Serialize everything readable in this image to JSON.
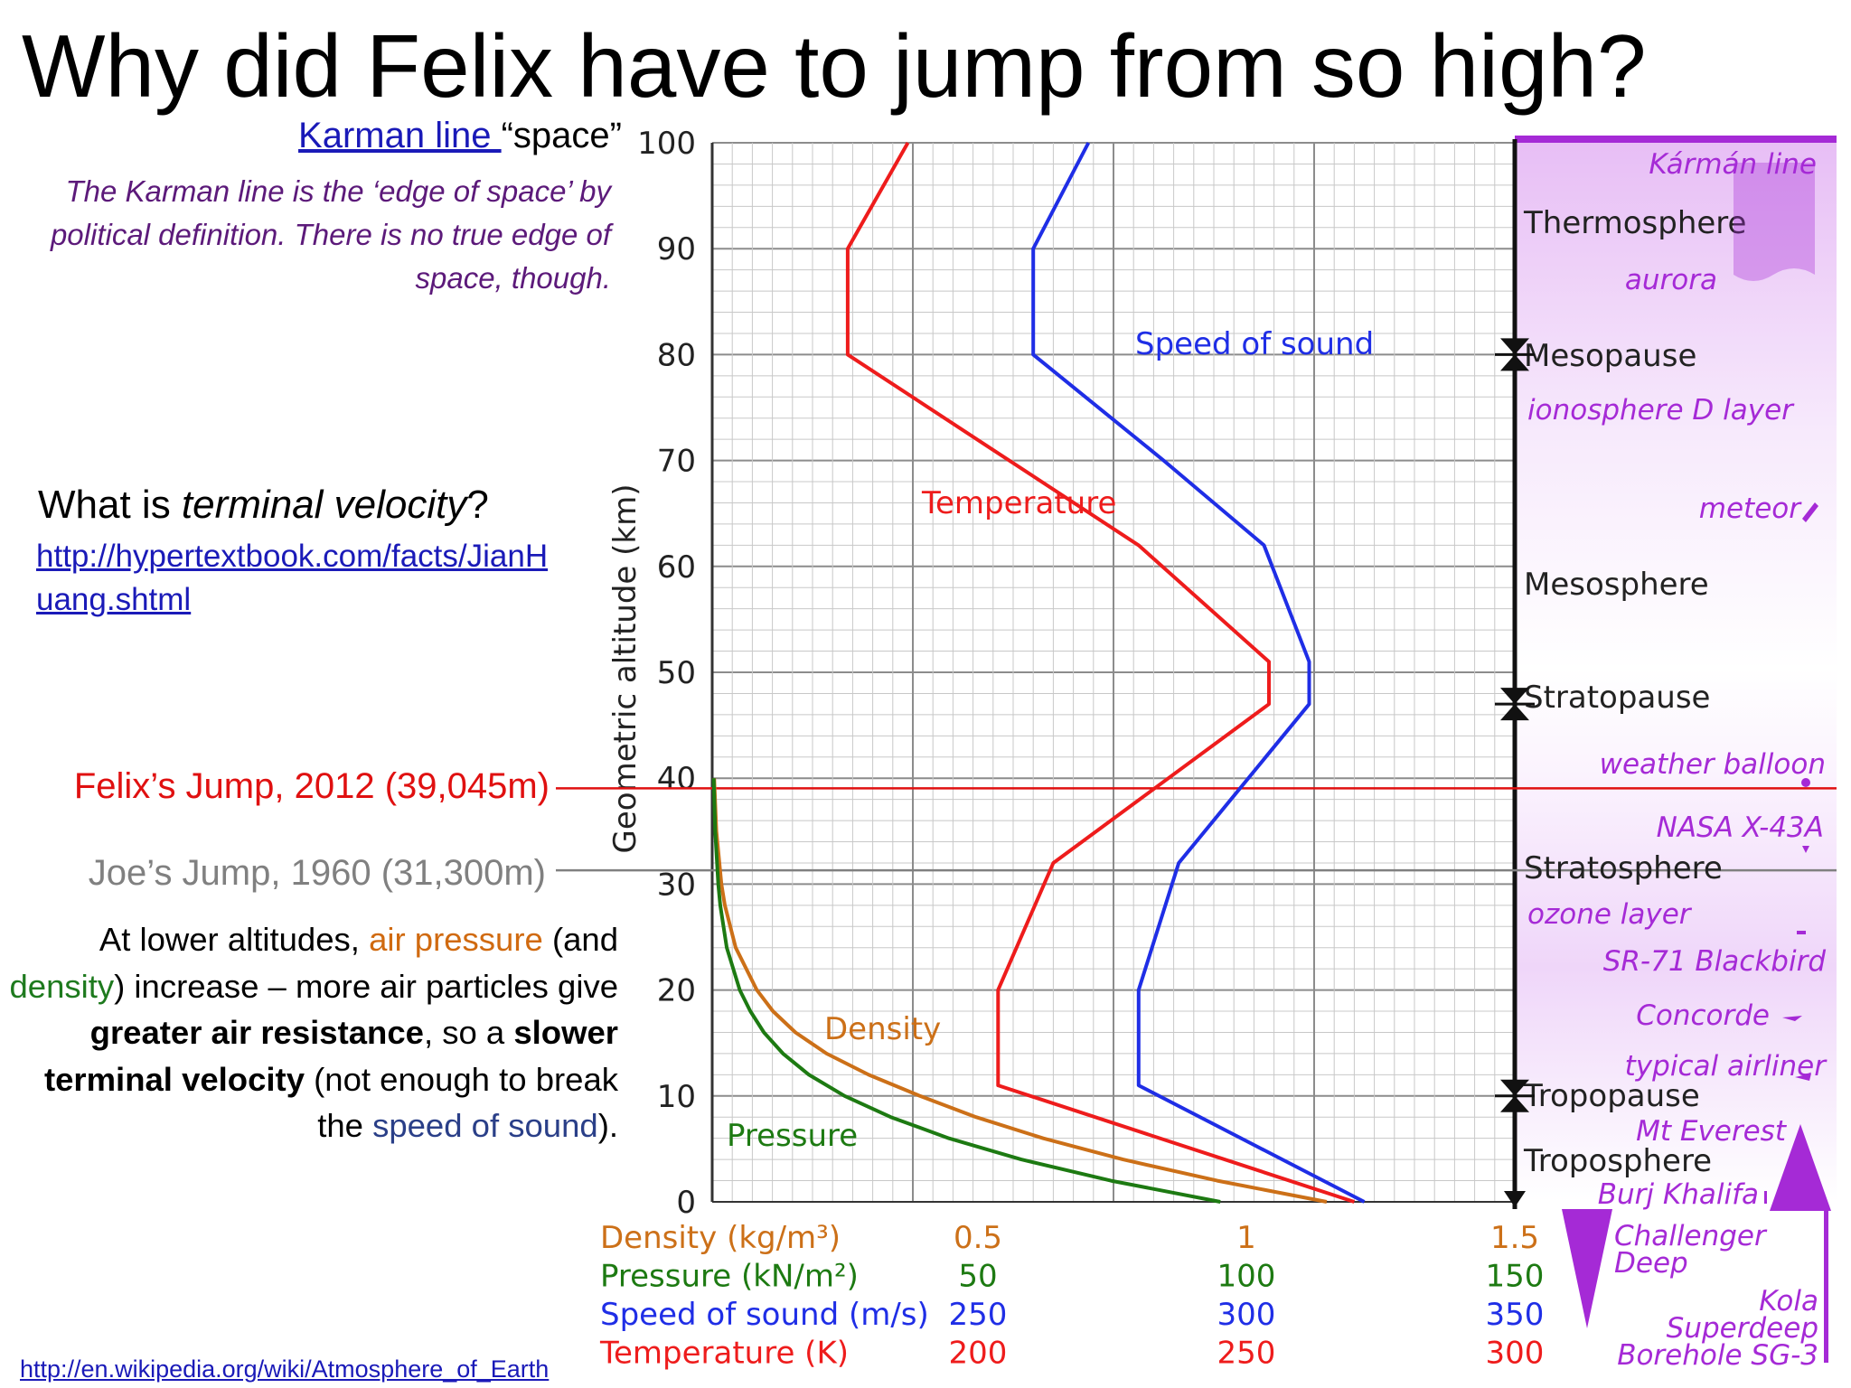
{
  "slide": {
    "title": "Why did Felix have to jump from so high?",
    "karman_link_text": "Karman line ",
    "karman_space": "“space”",
    "karman_note": "The Karman line is the ‘edge of space’ by political definition. There is no true edge of space, though.",
    "tv_question_prefix": "What is ",
    "tv_question_em": "terminal velocity",
    "tv_question_suffix": "?",
    "tv_link": "http://hypertextbook.com/facts/JianHuang.shtml",
    "felix_label": "Felix’s Jump, 2012 (39,045m)",
    "joe_label": "Joe’s Jump, 1960 (31,300m)",
    "para": {
      "p1": "At lower altitudes, ",
      "air_pressure": "air pressure",
      "p2": " (and ",
      "density": "density",
      "p3": ") increase – more air particles give ",
      "greater": "greater air resistance",
      "p4": ", so a ",
      "slower": "slower terminal velocity",
      "p5": " (not enough to break the ",
      "sos": "speed of sound",
      "p6": ")."
    },
    "source_link": "http://en.wikipedia.org/wiki/Atmosphere_of_Earth"
  },
  "colors": {
    "temperature": "#ee1c1c",
    "speed_of_sound": "#1f2ee6",
    "density": "#cc7018",
    "pressure": "#1d7a12",
    "felix_line": "#e01010",
    "joe_line": "#808080",
    "atmosphere_labels": "#a52ad6"
  },
  "chart_data": {
    "type": "line",
    "ylabel": "Geometric altitude (km)",
    "ylim": [
      0,
      100
    ],
    "yticks": [
      "0",
      "10",
      "20",
      "30",
      "40",
      "50",
      "60",
      "70",
      "80",
      "90",
      "100"
    ],
    "axes": [
      {
        "name": "Density (kg/m³)",
        "ticks": [
          "0.5",
          "1",
          "1.5"
        ]
      },
      {
        "name": "Pressure (kN/m²)",
        "ticks": [
          "50",
          "100",
          "150"
        ]
      },
      {
        "name": "Speed of sound (m/s)",
        "ticks": [
          "250",
          "300",
          "350"
        ]
      },
      {
        "name": "Temperature (K)",
        "ticks": [
          "200",
          "250",
          "300"
        ]
      }
    ],
    "series": [
      {
        "name": "Temperature",
        "unit": "K",
        "points": [
          [
            288,
            0
          ],
          [
            217,
            11
          ],
          [
            217,
            20
          ],
          [
            228,
            32
          ],
          [
            271,
            47
          ],
          [
            271,
            51
          ],
          [
            245,
            62
          ],
          [
            216,
            71
          ],
          [
            187,
            80
          ],
          [
            187,
            90
          ],
          [
            199,
            100
          ]
        ]
      },
      {
        "name": "Speed of sound",
        "unit": "m/s",
        "points": [
          [
            340,
            0
          ],
          [
            295,
            11
          ],
          [
            295,
            20
          ],
          [
            303,
            32
          ],
          [
            329,
            47
          ],
          [
            329,
            51
          ],
          [
            320,
            62
          ],
          [
            300,
            70
          ],
          [
            274,
            80
          ],
          [
            274,
            90
          ],
          [
            285,
            100
          ]
        ]
      },
      {
        "name": "Density",
        "unit": "kg/m³",
        "points": [
          [
            1.225,
            0
          ],
          [
            1.007,
            2
          ],
          [
            0.819,
            4
          ],
          [
            0.66,
            6
          ],
          [
            0.526,
            8
          ],
          [
            0.414,
            10
          ],
          [
            0.312,
            12
          ],
          [
            0.228,
            14
          ],
          [
            0.166,
            16
          ],
          [
            0.121,
            18
          ],
          [
            0.089,
            20
          ],
          [
            0.0469,
            24
          ],
          [
            0.0252,
            28
          ],
          [
            0.0184,
            30
          ],
          [
            0.0082,
            35
          ],
          [
            0.004,
            40
          ]
        ]
      },
      {
        "name": "Pressure",
        "unit": "kN/m²",
        "points": [
          [
            101.3,
            0
          ],
          [
            79.5,
            2
          ],
          [
            61.6,
            4
          ],
          [
            47.2,
            6
          ],
          [
            35.6,
            8
          ],
          [
            26.4,
            10
          ],
          [
            19.3,
            12
          ],
          [
            14.1,
            14
          ],
          [
            10.3,
            16
          ],
          [
            7.6,
            18
          ],
          [
            5.5,
            20
          ],
          [
            2.9,
            24
          ],
          [
            1.6,
            28
          ],
          [
            1.2,
            30
          ],
          [
            0.6,
            35
          ],
          [
            0.3,
            40
          ]
        ]
      }
    ],
    "markers": [
      {
        "name": "Felix’s Jump, 2012 (39,045m)",
        "altitude_km": 39.045
      },
      {
        "name": "Joe’s Jump, 1960 (31,300m)",
        "altitude_km": 31.3
      }
    ],
    "layers": [
      {
        "label": "Thermosphere",
        "altitude_km": 92
      },
      {
        "label": "Mesopause",
        "altitude_km": 80
      },
      {
        "label": "Mesosphere",
        "altitude_km": 58
      },
      {
        "label": "Stratopause",
        "altitude_km": 48
      },
      {
        "label": "Stratosphere",
        "altitude_km": 31
      },
      {
        "label": "Tropopause",
        "altitude_km": 10
      },
      {
        "label": "Troposphere",
        "altitude_km": 4
      }
    ],
    "boundaries_km": [
      80,
      47,
      10
    ],
    "objects": [
      {
        "label": "Kármán line",
        "altitude_km": 100
      },
      {
        "label": "aurora",
        "altitude_km": 86
      },
      {
        "label": "ionosphere D layer",
        "altitude_km": 74
      },
      {
        "label": "meteor",
        "altitude_km": 64
      },
      {
        "label": "weather balloon",
        "altitude_km": 41
      },
      {
        "label": "NASA X-43A",
        "altitude_km": 35
      },
      {
        "label": "ozone layer",
        "altitude_km": 27
      },
      {
        "label": "SR-71 Blackbird",
        "altitude_km": 23
      },
      {
        "label": "Concorde",
        "altitude_km": 18
      },
      {
        "label": "typical airliner",
        "altitude_km": 13
      },
      {
        "label": "Mt Everest",
        "altitude_km": 7
      },
      {
        "label": "Burj Khalifa",
        "altitude_km": 1
      },
      {
        "label": "Challenger Deep",
        "altitude_km": -3
      },
      {
        "label": "Kola Superdeep Borehole SG-3",
        "altitude_km": -10
      }
    ],
    "curve_labels": [
      "Speed of sound",
      "Temperature",
      "Density",
      "Pressure"
    ]
  }
}
